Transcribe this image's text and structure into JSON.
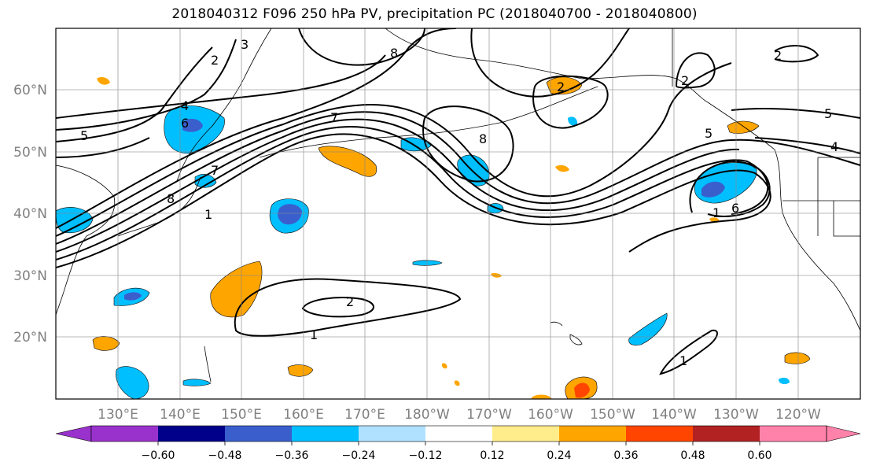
{
  "title": "2018040312 F096 250 hPa PV, precipitation PC (2018040700 - 2018040800)",
  "map": {
    "lon_labels": [
      "130°E",
      "140°E",
      "150°E",
      "160°E",
      "170°E",
      "180°W",
      "170°W",
      "160°W",
      "150°W",
      "140°W",
      "130°W",
      "120°W"
    ],
    "lat_labels": [
      "60°N",
      "50°N",
      "40°N",
      "30°N",
      "20°N"
    ],
    "contour_labels": [
      {
        "text": "2"
      },
      {
        "text": "3"
      },
      {
        "text": "8"
      },
      {
        "text": "5"
      },
      {
        "text": "4"
      },
      {
        "text": "6"
      },
      {
        "text": "7"
      },
      {
        "text": "8"
      },
      {
        "text": "1"
      },
      {
        "text": "7"
      },
      {
        "text": "8"
      },
      {
        "text": "2"
      },
      {
        "text": "2"
      },
      {
        "text": "5"
      },
      {
        "text": "5"
      },
      {
        "text": "4"
      },
      {
        "text": "1"
      },
      {
        "text": "6"
      },
      {
        "text": "2"
      },
      {
        "text": "1"
      },
      {
        "text": "1"
      },
      {
        "text": "2"
      }
    ]
  },
  "colorbar": {
    "tick_labels": [
      "−0.60",
      "−0.48",
      "−0.36",
      "−0.24",
      "−0.12",
      "0.12",
      "0.24",
      "0.36",
      "0.48",
      "0.60"
    ],
    "colors": [
      "#9932cc",
      "#00008b",
      "#3a5fcd",
      "#00bfff",
      "#b0e2ff",
      "#ffffff",
      "#ffec8b",
      "#ffa500",
      "#ff4500",
      "#b22222",
      "#ff82ab"
    ]
  }
}
